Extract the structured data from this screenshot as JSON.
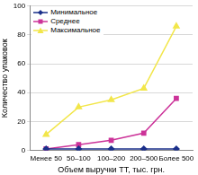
{
  "chart_data": {
    "type": "line",
    "categories": [
      "Менее 50",
      "50–100",
      "100–200",
      "200–500",
      "Более 500"
    ],
    "series": [
      {
        "name": "Минимальное",
        "color": "#1a2f8a",
        "marker": "diamond",
        "values": [
          1,
          1,
          1,
          1,
          1
        ]
      },
      {
        "name": "Среднее",
        "color": "#cc3399",
        "marker": "square",
        "values": [
          1,
          4,
          7,
          12,
          36
        ]
      },
      {
        "name": "Максимальное",
        "color": "#f2e64a",
        "marker": "triangle",
        "values": [
          11,
          30,
          35,
          43,
          86
        ]
      }
    ],
    "x_label": "Объем выручки ТТ, тыс. грн.",
    "y_label": "Количество упаковок",
    "ylim": [
      0,
      100
    ],
    "yticks": [
      0,
      20,
      40,
      60,
      80,
      100
    ],
    "grid": true,
    "legend": "upper left"
  }
}
